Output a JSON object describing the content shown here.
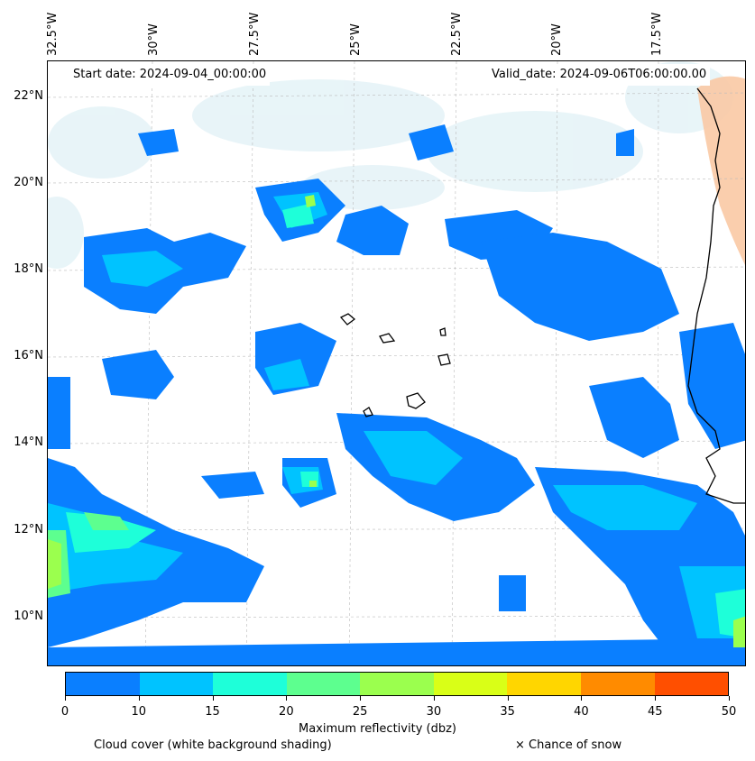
{
  "header": {
    "start_date": "Start date: 2024-09-04_00:00:00",
    "valid_date": "Valid_date: 2024-09-06T06:00:00.00"
  },
  "axes": {
    "longitude_labels": [
      "32.5°W",
      "30°W",
      "27.5°W",
      "25°W",
      "22.5°W",
      "20°W",
      "17.5°W"
    ],
    "latitude_labels": [
      "22°N",
      "20°N",
      "18°N",
      "16°N",
      "14°N",
      "12°N",
      "10°N"
    ]
  },
  "colorbar": {
    "title": "Maximum reflectivity (dbz)",
    "ticks": [
      "0",
      "10",
      "15",
      "20",
      "25",
      "30",
      "35",
      "40",
      "45",
      "50"
    ],
    "colors": [
      "#0a7fff",
      "#00c3ff",
      "#1effd9",
      "#5dff8f",
      "#9bff4e",
      "#d9ff17",
      "#ffd600",
      "#ff8b00",
      "#ff4f00"
    ]
  },
  "legend": {
    "cloud_cover": "Cloud cover (white background shading)",
    "snow": "× Chance of snow"
  },
  "colors": {
    "reflectivity_low": "#0a7fff",
    "reflectivity_mid": "#00c3ff",
    "cloud_shading": "#d6ecf3",
    "land_warm": "#f9c9a4",
    "coastline": "#000000"
  }
}
